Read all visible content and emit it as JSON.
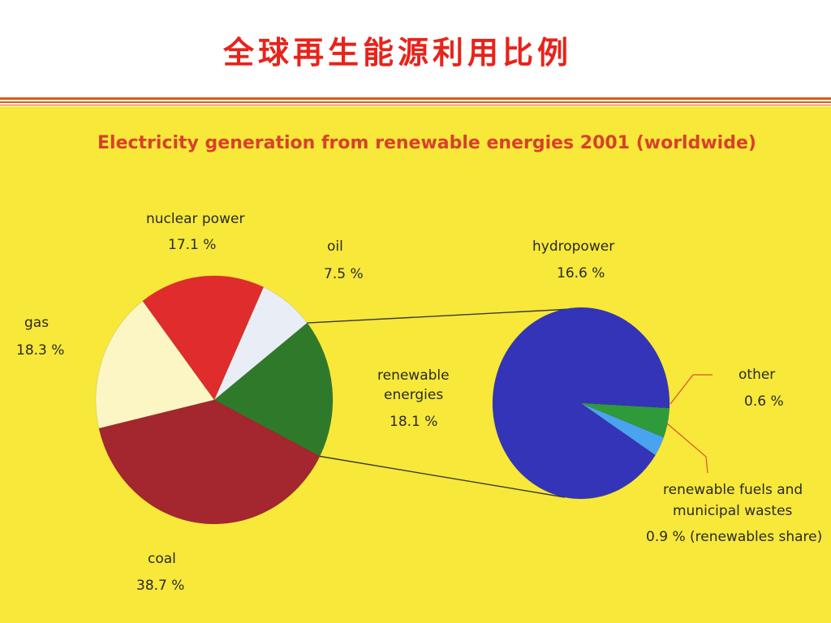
{
  "slide": {
    "title": "全球再生能源利用比例",
    "title_color": "#e8231a",
    "rule_color": "#e05a12"
  },
  "chart_data": [
    {
      "type": "pie",
      "title": "Electricity generation from renewable energies 2001 (worldwide)",
      "title_color": "#d8412a",
      "background_color": "#f7e83a",
      "slices": [
        {
          "name": "renewable energies",
          "value_label": "18.1 %",
          "value": 18.1,
          "color": "#2f7a2a"
        },
        {
          "name": "oil",
          "value_label": "7.5 %",
          "value": 7.5,
          "color": "#e9eef6"
        },
        {
          "name": "nuclear power",
          "value_label": "17.1 %",
          "value": 17.1,
          "color": "#e02c2c"
        },
        {
          "name": "gas",
          "value_label": "18.3 %",
          "value": 18.3,
          "color": "#fbf6c4"
        },
        {
          "name": "coal",
          "value_label": "38.7 %",
          "value": 38.7,
          "color": "#a4262e"
        }
      ]
    },
    {
      "type": "pie",
      "parent_slice": "renewable energies",
      "slices": [
        {
          "name": "hydropower",
          "value_label": "16.6 %",
          "value": 16.6,
          "color": "#3434b8"
        },
        {
          "name": "other",
          "value_label": "0.6 %",
          "value": 0.6,
          "color": "#4aa3f0"
        },
        {
          "name": "renewable fuels and municipal wastes",
          "name_lines": [
            "renewable fuels and",
            "municipal wastes"
          ],
          "value_label": "0.9 % (renewables share)",
          "value": 0.9,
          "color": "#2f9a3a"
        }
      ],
      "callout_color": "#e0502a"
    }
  ]
}
